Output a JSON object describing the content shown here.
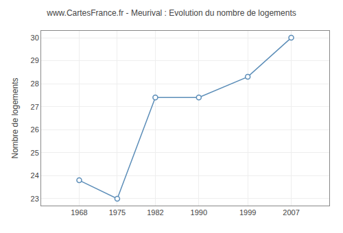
{
  "chart_data": {
    "type": "line",
    "title": "www.CartesFrance.fr - Meurival : Evolution du nombre de logements",
    "ylabel": "Nombre de logements",
    "x": [
      1968,
      1975,
      1982,
      1990,
      1999,
      2007
    ],
    "values": [
      23.8,
      23.0,
      27.4,
      27.4,
      28.3,
      30.0
    ],
    "color": "#5b8db8",
    "marker": "circle",
    "xlim": [
      1961,
      2014
    ],
    "ylim": [
      22.7,
      30.3
    ],
    "xticks": [
      1968,
      1975,
      1982,
      1990,
      1999,
      2007
    ],
    "yticks": [
      23,
      24,
      25,
      26,
      27,
      28,
      29,
      30
    ],
    "grid": true
  }
}
